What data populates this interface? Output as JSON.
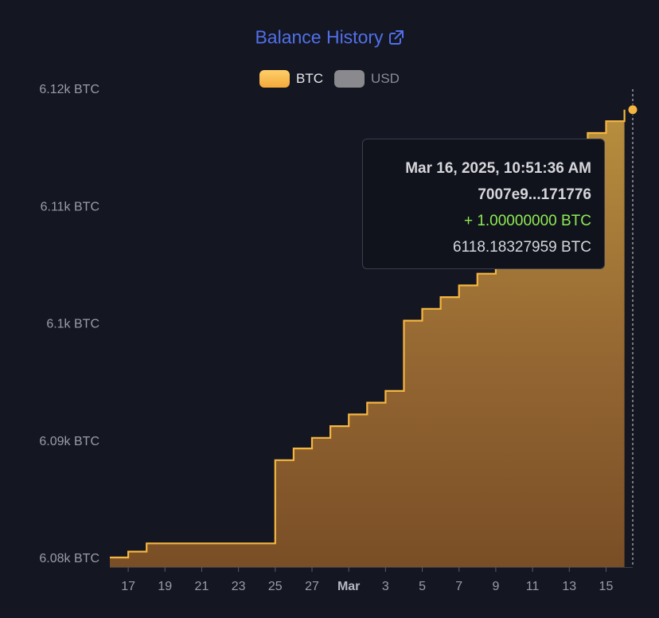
{
  "header": {
    "title": "Balance History",
    "link_icon": "external-link-icon"
  },
  "legend": [
    {
      "label": "BTC",
      "color": "#f5b640",
      "active": true
    },
    {
      "label": "USD",
      "color": "#8a8a8e",
      "active": false
    }
  ],
  "tooltip": {
    "date": "Mar 16, 2025, 10:51:36 AM",
    "tx": "7007e9...171776",
    "change": "+ 1.00000000 BTC",
    "balance": "6118.18327959 BTC"
  },
  "colors": {
    "accent": "#f5b640",
    "title": "#5170e8",
    "positive": "#8fea55"
  },
  "chart_data": {
    "type": "area",
    "step": true,
    "series": [
      {
        "name": "BTC",
        "x": [
          "2025-02-16",
          "2025-02-17",
          "2025-02-18",
          "2025-02-25",
          "2025-02-26",
          "2025-02-27",
          "2025-02-28",
          "2025-03-01",
          "2025-03-02",
          "2025-03-03",
          "2025-03-04",
          "2025-03-05",
          "2025-03-06",
          "2025-03-07",
          "2025-03-08",
          "2025-03-09",
          "2025-03-10",
          "2025-03-11",
          "2025-03-12",
          "2025-03-13",
          "2025-03-14",
          "2025-03-15",
          "2025-03-16"
        ],
        "values": [
          6080.0,
          6080.5,
          6081.2,
          6088.3,
          6089.3,
          6090.2,
          6091.2,
          6092.2,
          6093.2,
          6094.2,
          6100.2,
          6101.2,
          6102.2,
          6103.2,
          6104.2,
          6105.2,
          6107.3,
          6108.5,
          6109.7,
          6111.1,
          6116.2,
          6117.2,
          6118.18327959
        ]
      }
    ],
    "x_tick_labels": [
      "17",
      "19",
      "21",
      "23",
      "25",
      "27",
      "Mar",
      "3",
      "5",
      "7",
      "9",
      "11",
      "13",
      "15"
    ],
    "x_tick_dates": [
      "2025-02-17",
      "2025-02-19",
      "2025-02-21",
      "2025-02-23",
      "2025-02-25",
      "2025-02-27",
      "2025-03-01",
      "2025-03-03",
      "2025-03-05",
      "2025-03-07",
      "2025-03-09",
      "2025-03-11",
      "2025-03-13",
      "2025-03-15"
    ],
    "x_range": [
      "2025-02-16",
      "2025-03-16T10:51:36"
    ],
    "y_ticks": [
      6080,
      6090,
      6100,
      6110,
      6120
    ],
    "y_tick_labels": [
      "6.08k BTC",
      "6.09k BTC",
      "6.1k BTC",
      "6.11k BTC",
      "6.12k BTC"
    ],
    "ylim": [
      6080,
      6120
    ],
    "grid": false,
    "legend_position": "top-center",
    "highlight": {
      "x": "2025-03-16T10:51:36",
      "value": 6118.18327959
    }
  }
}
